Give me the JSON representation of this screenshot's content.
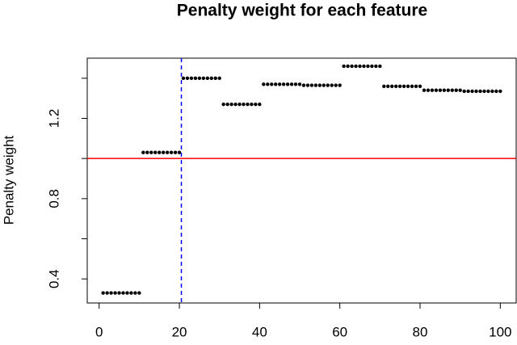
{
  "chart_data": {
    "type": "scatter",
    "title": "Penalty weight for each feature",
    "y_label": "Penalty weight",
    "x": [
      1,
      2,
      3,
      4,
      5,
      6,
      7,
      8,
      9,
      10,
      11,
      12,
      13,
      14,
      15,
      16,
      17,
      18,
      19,
      20,
      21,
      22,
      23,
      24,
      25,
      26,
      27,
      28,
      29,
      30,
      31,
      32,
      33,
      34,
      35,
      36,
      37,
      38,
      39,
      40,
      41,
      42,
      43,
      44,
      45,
      46,
      47,
      48,
      49,
      50,
      51,
      52,
      53,
      54,
      55,
      56,
      57,
      58,
      59,
      60,
      61,
      62,
      63,
      64,
      65,
      66,
      67,
      68,
      69,
      70,
      71,
      72,
      73,
      74,
      75,
      76,
      77,
      78,
      79,
      80,
      81,
      82,
      83,
      84,
      85,
      86,
      87,
      88,
      89,
      90,
      91,
      92,
      93,
      94,
      95,
      96,
      97,
      98,
      99,
      100
    ],
    "y": [
      0.33,
      0.33,
      0.33,
      0.33,
      0.33,
      0.33,
      0.33,
      0.33,
      0.33,
      0.33,
      1.03,
      1.03,
      1.03,
      1.03,
      1.03,
      1.03,
      1.03,
      1.03,
      1.03,
      1.03,
      1.4,
      1.4,
      1.4,
      1.4,
      1.4,
      1.4,
      1.4,
      1.4,
      1.4,
      1.4,
      1.27,
      1.27,
      1.27,
      1.27,
      1.27,
      1.27,
      1.27,
      1.27,
      1.27,
      1.27,
      1.37,
      1.37,
      1.37,
      1.37,
      1.37,
      1.37,
      1.37,
      1.37,
      1.37,
      1.37,
      1.365,
      1.365,
      1.365,
      1.365,
      1.365,
      1.365,
      1.365,
      1.365,
      1.365,
      1.365,
      1.46,
      1.46,
      1.46,
      1.46,
      1.46,
      1.46,
      1.46,
      1.46,
      1.46,
      1.46,
      1.36,
      1.36,
      1.36,
      1.36,
      1.36,
      1.36,
      1.36,
      1.36,
      1.36,
      1.36,
      1.34,
      1.34,
      1.34,
      1.34,
      1.34,
      1.34,
      1.34,
      1.34,
      1.34,
      1.34,
      1.335,
      1.335,
      1.335,
      1.335,
      1.335,
      1.335,
      1.335,
      1.335,
      1.335,
      1.335
    ],
    "color": "#000000",
    "xlim": [
      -2.96,
      103.96
    ],
    "ylim": [
      0.28,
      1.5
    ],
    "xticks": [
      0,
      20,
      40,
      60,
      80,
      100
    ],
    "yticks": [
      0.4,
      0.8,
      1.2
    ],
    "yticks_unlabeled": [
      0.6,
      1.0,
      1.4
    ],
    "hlines": [
      {
        "value": 1.0,
        "color": "#ff0000"
      }
    ],
    "vlines": [
      {
        "value": 20.5,
        "color": "#0000ff",
        "dashed": true
      }
    ]
  }
}
